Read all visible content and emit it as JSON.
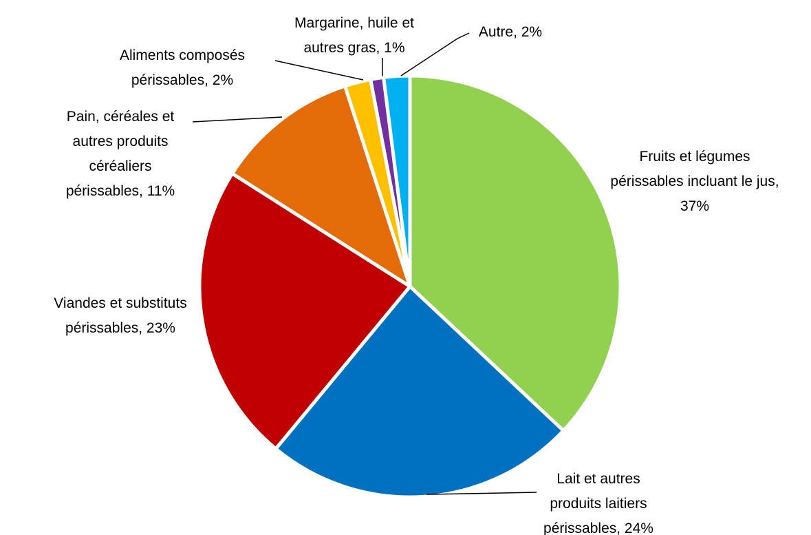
{
  "chart_data": {
    "type": "pie",
    "values": [
      37,
      24,
      23,
      11,
      2,
      1,
      2
    ],
    "value_labels": [
      "Fruits et légumes périssables incluant le jus, 37%",
      "Lait et autres produits laitiers périssables, 24%",
      "Viandes et substituts périssables, 23%",
      "Pain, céréales et autres produits céréaliers périssables, 11%",
      "Aliments composés périssables, 2%",
      "Margarine, huile et autres gras, 1%",
      "Autre, 2%"
    ],
    "colors": [
      "#92d050",
      "#0070c0",
      "#c00000",
      "#e36c09",
      "#ffc000",
      "#7030a0",
      "#00b0f0"
    ]
  }
}
